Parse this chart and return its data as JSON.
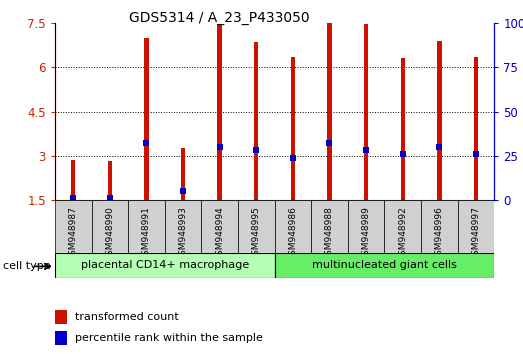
{
  "title": "GDS5314 / A_23_P433050",
  "samples": [
    "GSM948987",
    "GSM948990",
    "GSM948991",
    "GSM948993",
    "GSM948994",
    "GSM948995",
    "GSM948986",
    "GSM948988",
    "GSM948989",
    "GSM948992",
    "GSM948996",
    "GSM948997"
  ],
  "transformed_count": [
    2.85,
    2.82,
    7.0,
    3.25,
    7.45,
    6.85,
    6.35,
    7.5,
    7.45,
    6.3,
    6.9,
    6.35
  ],
  "percentile_rank_pct": [
    1,
    1,
    32,
    5,
    30,
    28,
    24,
    32,
    28,
    26,
    30,
    26
  ],
  "groups": [
    {
      "name": "placental CD14+ macrophage",
      "count": 6,
      "color": "#b3ffb3"
    },
    {
      "name": "multinucleated giant cells",
      "count": 6,
      "color": "#66ee66"
    }
  ],
  "ylim_left": [
    1.5,
    7.5
  ],
  "ylim_right": [
    0,
    100
  ],
  "yticks_left": [
    1.5,
    3.0,
    4.5,
    6.0,
    7.5
  ],
  "yticks_right": [
    0,
    25,
    50,
    75,
    100
  ],
  "ytick_labels_left": [
    "1.5",
    "3",
    "4.5",
    "6",
    "7.5"
  ],
  "ytick_labels_right": [
    "0",
    "25",
    "50",
    "75",
    "100%"
  ],
  "bar_color": "#cc1100",
  "dot_color": "#0000cc",
  "title_color": "#000000",
  "left_axis_color": "#cc2200",
  "right_axis_color": "#0000cc",
  "bar_width": 0.12,
  "legend_items": [
    {
      "label": "transformed count",
      "color": "#cc1100"
    },
    {
      "label": "percentile rank within the sample",
      "color": "#0000cc"
    }
  ],
  "cell_type_label": "cell type",
  "background_color": "#ffffff"
}
